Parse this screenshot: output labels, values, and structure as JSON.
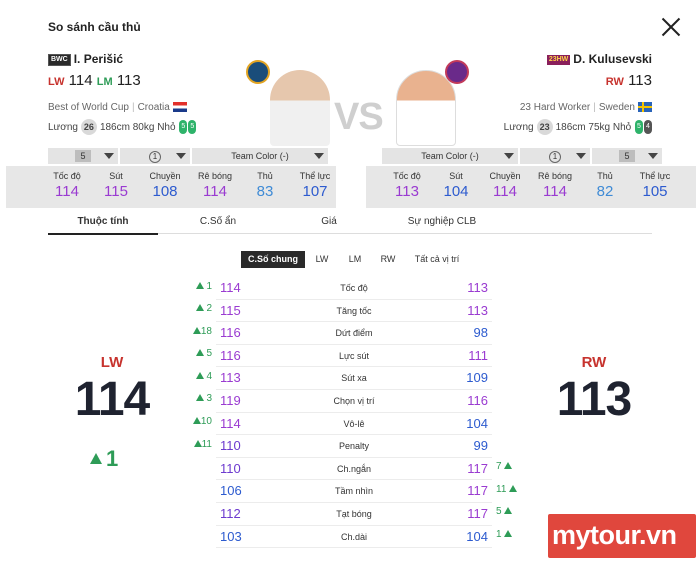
{
  "title": "So sánh cầu thủ",
  "left_player": {
    "season_badge": "BWC",
    "name": "I. Perišić",
    "positions": [
      {
        "pos": "LW",
        "ovr": "114"
      },
      {
        "pos": "LM",
        "ovr": "113"
      }
    ],
    "trait": "Best of World Cup",
    "nation": "Croatia",
    "salary_label": "Lương",
    "salary": "26",
    "height": "186cm",
    "weight": "80kg",
    "body": "Nhỏ",
    "foot_left": "5",
    "foot_right": "5"
  },
  "right_player": {
    "season_badge": "23HW",
    "name": "D. Kulusevski",
    "positions": [
      {
        "pos": "RW",
        "ovr": "113"
      }
    ],
    "trait": "23 Hard Worker",
    "nation": "Sweden",
    "salary_label": "Lương",
    "salary": "23",
    "height": "186cm",
    "weight": "75kg",
    "body": "Nhỏ",
    "foot_left": "5",
    "foot_right": "4"
  },
  "vs_text": "VS",
  "selects": {
    "left_level": "5",
    "left_enhance": "1",
    "left_team_color": "Team Color (-)",
    "right_team_color": "Team Color (-)",
    "right_enhance": "1",
    "right_level": "5"
  },
  "summary_labels": [
    "Tốc độ",
    "Sút",
    "Chuyền",
    "Rê bóng",
    "Thủ",
    "Thể lực"
  ],
  "summary_left": [
    "114",
    "115",
    "108",
    "114",
    "83",
    "107"
  ],
  "summary_right": [
    "113",
    "104",
    "114",
    "114",
    "82",
    "105"
  ],
  "tabs": [
    "Thuộc tính",
    "C.Số ẩn",
    "Giá",
    "Sự nghiệp CLB"
  ],
  "subtabs": [
    "C.Số chung",
    "LW",
    "LM",
    "RW",
    "Tất cả vị trí"
  ],
  "rows": [
    {
      "left_diff": "1",
      "left": "114",
      "label": "Tốc độ",
      "right": "113",
      "right_diff": ""
    },
    {
      "left_diff": "2",
      "left": "115",
      "label": "Tăng tốc",
      "right": "113",
      "right_diff": ""
    },
    {
      "left_diff": "18",
      "left": "116",
      "label": "Dứt điểm",
      "right": "98",
      "right_diff": ""
    },
    {
      "left_diff": "5",
      "left": "116",
      "label": "Lực sút",
      "right": "111",
      "right_diff": ""
    },
    {
      "left_diff": "4",
      "left": "113",
      "label": "Sút xa",
      "right": "109",
      "right_diff": ""
    },
    {
      "left_diff": "3",
      "left": "119",
      "label": "Chọn vị trí",
      "right": "116",
      "right_diff": ""
    },
    {
      "left_diff": "10",
      "left": "114",
      "label": "Vô-lê",
      "right": "104",
      "right_diff": ""
    },
    {
      "left_diff": "11",
      "left": "110",
      "label": "Penalty",
      "right": "99",
      "right_diff": ""
    },
    {
      "left_diff": "",
      "left": "110",
      "label": "Ch.ngắn",
      "right": "117",
      "right_diff": "7"
    },
    {
      "left_diff": "",
      "left": "106",
      "label": "Tầm nhìn",
      "right": "117",
      "right_diff": "11"
    },
    {
      "left_diff": "",
      "left": "112",
      "label": "Tạt bóng",
      "right": "117",
      "right_diff": "5"
    },
    {
      "left_diff": "",
      "left": "103",
      "label": "Ch.dài",
      "right": "104",
      "right_diff": "1"
    }
  ],
  "big_left": {
    "pos": "LW",
    "ovr": "114",
    "diff": "1"
  },
  "big_right": {
    "pos": "RW",
    "ovr": "113"
  },
  "watermark": "mytour.vn",
  "colors": {
    "accent_red": "#c7332e",
    "up_green": "#2e9c57",
    "purple": "#9a3bd1",
    "blue": "#2d5bcf",
    "watermark_bg": "#e0473d"
  }
}
